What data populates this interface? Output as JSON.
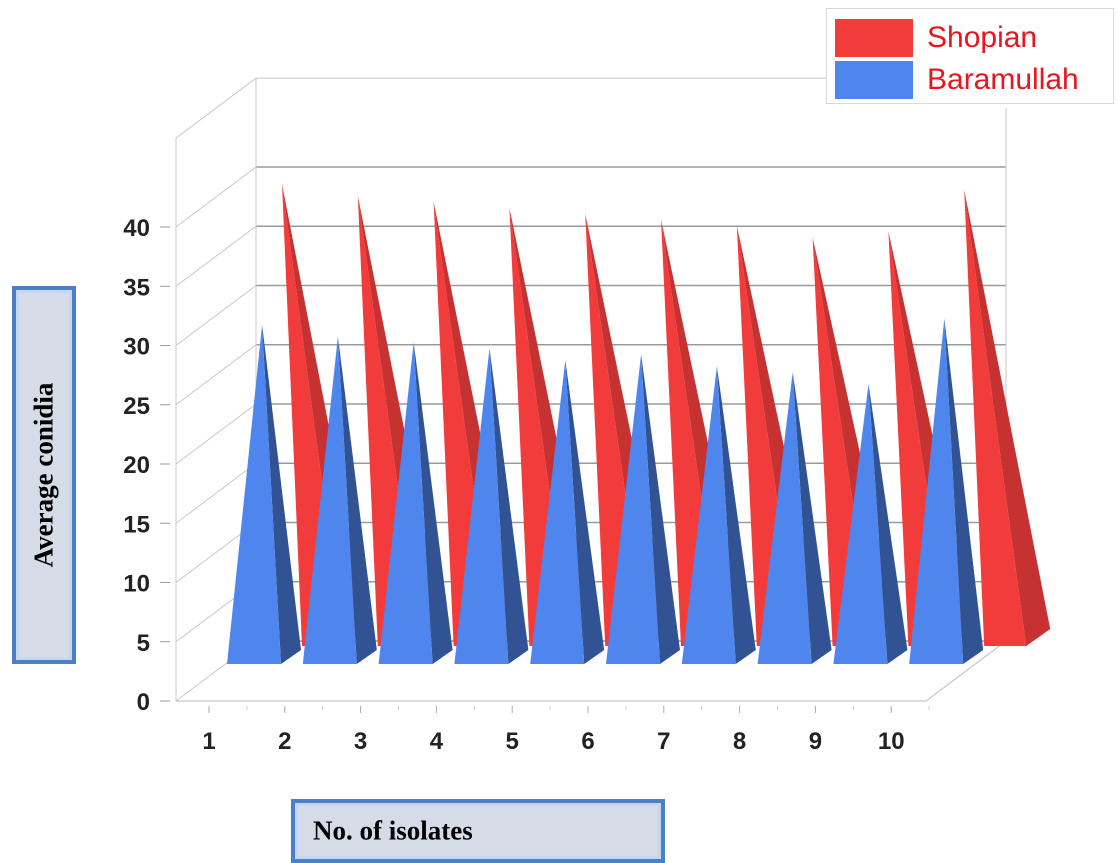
{
  "chart_data": {
    "type": "bar",
    "shape": "pyramid-3d",
    "xlabel": "No. of isolates",
    "ylabel": "Average conidia",
    "x_ticks": [
      "1",
      "2",
      "3",
      "4",
      "5",
      "6",
      "7",
      "8",
      "9",
      "10"
    ],
    "y_ticks": [
      "0",
      "5",
      "10",
      "15",
      "20",
      "25",
      "30",
      "35",
      "40"
    ],
    "ylim": [
      0,
      45
    ],
    "grid": true,
    "legend_position": "top-right",
    "series": [
      {
        "name": "Shopian",
        "color": "#f23c3c",
        "values": [
          40.5,
          39.5,
          39,
          38.5,
          38,
          37.5,
          37,
          36,
          36.5,
          40
        ]
      },
      {
        "name": "Baramullah",
        "color": "#4f86ee",
        "values": [
          30.5,
          29.5,
          29,
          28.5,
          27.5,
          28,
          27,
          26.5,
          25.5,
          31
        ]
      }
    ]
  }
}
